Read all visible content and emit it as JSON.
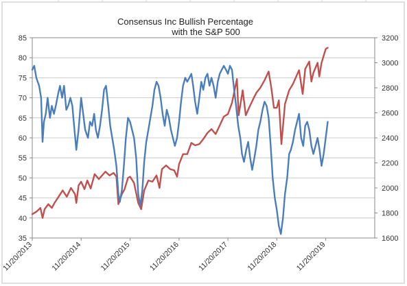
{
  "chart_data": {
    "type": "line",
    "title": "Consensus Inc Bullish Percentage",
    "subtitle": "with the S&P 500",
    "xlabel": "",
    "ylabel_left": "",
    "ylabel_right": "",
    "x_tick_labels": [
      "11/20/2013",
      "11/20/2014",
      "11/20/2015",
      "11/20/2016",
      "11/20/2017",
      "11/20/2018",
      "11/20/2019"
    ],
    "x_range": [
      "11/20/2013",
      "11/20/2020"
    ],
    "ylim_left": [
      35,
      85
    ],
    "ylim_right": [
      1600,
      3200
    ],
    "y_ticks_left": [
      "35",
      "40",
      "45",
      "50",
      "55",
      "60",
      "65",
      "70",
      "75",
      "80",
      "85"
    ],
    "y_ticks_right": [
      "1600",
      "1800",
      "2000",
      "2200",
      "2400",
      "2600",
      "2800",
      "3000",
      "3200"
    ],
    "grid": "horizontal",
    "legend": "none",
    "series": [
      {
        "axis": "left",
        "color": "#4a7ebb",
        "points": [
          [
            "2013-11-20",
            77
          ],
          [
            "2013-12-05",
            78
          ],
          [
            "2013-12-20",
            75
          ],
          [
            "2014-01-10",
            73
          ],
          [
            "2014-01-25",
            70
          ],
          [
            "2014-02-05",
            59
          ],
          [
            "2014-02-15",
            64
          ],
          [
            "2014-03-01",
            66
          ],
          [
            "2014-03-15",
            70
          ],
          [
            "2014-04-01",
            65
          ],
          [
            "2014-04-15",
            68
          ],
          [
            "2014-05-01",
            66
          ],
          [
            "2014-05-15",
            68
          ],
          [
            "2014-06-01",
            71
          ],
          [
            "2014-06-15",
            73
          ],
          [
            "2014-07-01",
            70
          ],
          [
            "2014-07-15",
            73
          ],
          [
            "2014-08-01",
            67
          ],
          [
            "2014-08-15",
            68
          ],
          [
            "2014-09-01",
            70
          ],
          [
            "2014-09-15",
            68
          ],
          [
            "2014-10-01",
            62
          ],
          [
            "2014-10-15",
            57
          ],
          [
            "2014-11-01",
            62
          ],
          [
            "2014-11-20",
            70
          ],
          [
            "2014-12-05",
            66
          ],
          [
            "2014-12-20",
            62
          ],
          [
            "2015-01-10",
            60
          ],
          [
            "2015-01-25",
            64
          ],
          [
            "2015-02-10",
            63
          ],
          [
            "2015-02-25",
            66
          ],
          [
            "2015-03-10",
            62
          ],
          [
            "2015-03-25",
            60
          ],
          [
            "2015-04-10",
            63
          ],
          [
            "2015-04-25",
            67
          ],
          [
            "2015-05-10",
            72
          ],
          [
            "2015-05-25",
            73
          ],
          [
            "2015-06-10",
            68
          ],
          [
            "2015-06-25",
            63
          ],
          [
            "2015-07-10",
            60
          ],
          [
            "2015-07-25",
            57
          ],
          [
            "2015-08-10",
            53
          ],
          [
            "2015-08-25",
            46
          ],
          [
            "2015-09-05",
            44
          ],
          [
            "2015-09-20",
            47
          ],
          [
            "2015-10-05",
            53
          ],
          [
            "2015-10-20",
            60
          ],
          [
            "2015-11-05",
            65
          ],
          [
            "2015-11-20",
            64
          ],
          [
            "2015-12-05",
            62
          ],
          [
            "2015-12-20",
            60
          ],
          [
            "2016-01-05",
            55
          ],
          [
            "2016-01-20",
            46
          ],
          [
            "2016-02-05",
            43
          ],
          [
            "2016-02-20",
            47
          ],
          [
            "2016-03-05",
            54
          ],
          [
            "2016-03-20",
            59
          ],
          [
            "2016-04-05",
            62
          ],
          [
            "2016-04-20",
            65
          ],
          [
            "2016-05-05",
            68
          ],
          [
            "2016-05-20",
            72
          ],
          [
            "2016-06-05",
            74
          ],
          [
            "2016-06-20",
            73
          ],
          [
            "2016-07-05",
            70
          ],
          [
            "2016-07-20",
            66
          ],
          [
            "2016-08-05",
            63
          ],
          [
            "2016-08-20",
            67
          ],
          [
            "2016-09-05",
            65
          ],
          [
            "2016-09-20",
            62
          ],
          [
            "2016-10-05",
            60
          ],
          [
            "2016-10-20",
            58
          ],
          [
            "2016-11-05",
            60
          ],
          [
            "2016-11-20",
            64
          ],
          [
            "2016-12-05",
            69
          ],
          [
            "2016-12-20",
            73
          ],
          [
            "2017-01-05",
            75
          ],
          [
            "2017-01-20",
            74
          ],
          [
            "2017-02-05",
            75
          ],
          [
            "2017-02-20",
            76
          ],
          [
            "2017-03-05",
            73
          ],
          [
            "2017-03-20",
            69
          ],
          [
            "2017-04-05",
            66
          ],
          [
            "2017-04-20",
            70
          ],
          [
            "2017-05-05",
            74
          ],
          [
            "2017-05-20",
            72
          ],
          [
            "2017-06-05",
            75
          ],
          [
            "2017-06-20",
            76
          ],
          [
            "2017-07-05",
            73
          ],
          [
            "2017-07-20",
            75
          ],
          [
            "2017-08-05",
            73
          ],
          [
            "2017-08-20",
            70
          ],
          [
            "2017-09-05",
            74
          ],
          [
            "2017-09-20",
            76
          ],
          [
            "2017-10-05",
            77
          ],
          [
            "2017-10-20",
            78
          ],
          [
            "2017-11-05",
            77
          ],
          [
            "2017-11-20",
            76
          ],
          [
            "2017-12-05",
            78
          ],
          [
            "2017-12-20",
            77
          ],
          [
            "2018-01-05",
            72
          ],
          [
            "2018-01-20",
            68
          ],
          [
            "2018-02-05",
            63
          ],
          [
            "2018-02-20",
            60
          ],
          [
            "2018-03-05",
            56
          ],
          [
            "2018-03-20",
            54
          ],
          [
            "2018-04-05",
            57
          ],
          [
            "2018-04-20",
            59
          ],
          [
            "2018-05-05",
            55
          ],
          [
            "2018-05-20",
            52
          ],
          [
            "2018-06-05",
            55
          ],
          [
            "2018-06-20",
            58
          ],
          [
            "2018-07-05",
            62
          ],
          [
            "2018-07-20",
            64
          ],
          [
            "2018-08-05",
            67
          ],
          [
            "2018-08-20",
            69
          ],
          [
            "2018-09-05",
            68
          ],
          [
            "2018-09-20",
            65
          ],
          [
            "2018-10-05",
            58
          ],
          [
            "2018-10-20",
            50
          ],
          [
            "2018-11-05",
            45
          ],
          [
            "2018-11-20",
            42
          ],
          [
            "2018-12-05",
            38
          ],
          [
            "2018-12-20",
            36
          ],
          [
            "2019-01-05",
            40
          ],
          [
            "2019-01-20",
            46
          ],
          [
            "2019-02-05",
            50
          ],
          [
            "2019-02-20",
            56
          ],
          [
            "2019-03-05",
            57
          ],
          [
            "2019-03-20",
            59
          ],
          [
            "2019-04-05",
            62
          ],
          [
            "2019-04-20",
            64
          ],
          [
            "2019-05-05",
            66
          ],
          [
            "2019-05-20",
            60
          ],
          [
            "2019-06-05",
            58
          ],
          [
            "2019-06-20",
            63
          ],
          [
            "2019-07-05",
            64
          ],
          [
            "2019-07-20",
            62
          ],
          [
            "2019-08-05",
            58
          ],
          [
            "2019-08-20",
            56
          ],
          [
            "2019-09-05",
            58
          ],
          [
            "2019-09-20",
            60
          ],
          [
            "2019-10-05",
            57
          ],
          [
            "2019-10-20",
            53
          ],
          [
            "2019-11-05",
            56
          ],
          [
            "2019-11-20",
            60
          ],
          [
            "2019-12-05",
            64
          ]
        ]
      },
      {
        "axis": "right",
        "color": "#c0504d",
        "points": [
          [
            "2013-11-20",
            1790
          ],
          [
            "2013-12-20",
            1810
          ],
          [
            "2014-01-20",
            1840
          ],
          [
            "2014-02-05",
            1760
          ],
          [
            "2014-02-20",
            1830
          ],
          [
            "2014-03-20",
            1870
          ],
          [
            "2014-04-15",
            1840
          ],
          [
            "2014-05-05",
            1880
          ],
          [
            "2014-06-05",
            1930
          ],
          [
            "2014-07-05",
            1980
          ],
          [
            "2014-08-05",
            1930
          ],
          [
            "2014-09-05",
            2000
          ],
          [
            "2014-10-05",
            1950
          ],
          [
            "2014-10-15",
            1880
          ],
          [
            "2014-11-01",
            2020
          ],
          [
            "2014-11-20",
            2050
          ],
          [
            "2014-12-15",
            1990
          ],
          [
            "2015-01-05",
            2060
          ],
          [
            "2015-01-30",
            1995
          ],
          [
            "2015-03-01",
            2110
          ],
          [
            "2015-04-01",
            2070
          ],
          [
            "2015-05-20",
            2130
          ],
          [
            "2015-06-20",
            2100
          ],
          [
            "2015-07-20",
            2120
          ],
          [
            "2015-08-10",
            2090
          ],
          [
            "2015-08-25",
            1870
          ],
          [
            "2015-09-20",
            1950
          ],
          [
            "2015-10-10",
            1990
          ],
          [
            "2015-11-05",
            2080
          ],
          [
            "2015-11-20",
            2090
          ],
          [
            "2015-12-20",
            2040
          ],
          [
            "2016-01-20",
            1880
          ],
          [
            "2016-02-11",
            1830
          ],
          [
            "2016-03-05",
            1980
          ],
          [
            "2016-04-05",
            2060
          ],
          [
            "2016-05-05",
            2050
          ],
          [
            "2016-06-05",
            2100
          ],
          [
            "2016-06-27",
            2000
          ],
          [
            "2016-07-15",
            2150
          ],
          [
            "2016-08-15",
            2180
          ],
          [
            "2016-09-15",
            2150
          ],
          [
            "2016-10-15",
            2140
          ],
          [
            "2016-11-05",
            2090
          ],
          [
            "2016-11-20",
            2190
          ],
          [
            "2016-12-20",
            2270
          ],
          [
            "2017-01-20",
            2270
          ],
          [
            "2017-02-20",
            2360
          ],
          [
            "2017-03-20",
            2340
          ],
          [
            "2017-04-20",
            2350
          ],
          [
            "2017-05-20",
            2390
          ],
          [
            "2017-06-20",
            2440
          ],
          [
            "2017-07-20",
            2470
          ],
          [
            "2017-08-20",
            2430
          ],
          [
            "2017-09-20",
            2500
          ],
          [
            "2017-10-20",
            2570
          ],
          [
            "2017-11-20",
            2590
          ],
          [
            "2017-12-20",
            2680
          ],
          [
            "2018-01-26",
            2870
          ],
          [
            "2018-02-08",
            2580
          ],
          [
            "2018-03-10",
            2780
          ],
          [
            "2018-04-02",
            2580
          ],
          [
            "2018-05-01",
            2650
          ],
          [
            "2018-06-01",
            2720
          ],
          [
            "2018-06-20",
            2760
          ],
          [
            "2018-07-20",
            2800
          ],
          [
            "2018-08-20",
            2860
          ],
          [
            "2018-09-20",
            2930
          ],
          [
            "2018-10-10",
            2800
          ],
          [
            "2018-10-29",
            2640
          ],
          [
            "2018-11-20",
            2640
          ],
          [
            "2018-12-05",
            2700
          ],
          [
            "2018-12-24",
            2350
          ],
          [
            "2019-01-20",
            2670
          ],
          [
            "2019-02-20",
            2780
          ],
          [
            "2019-03-20",
            2830
          ],
          [
            "2019-04-20",
            2905
          ],
          [
            "2019-05-05",
            2940
          ],
          [
            "2019-06-01",
            2750
          ],
          [
            "2019-06-20",
            2950
          ],
          [
            "2019-07-20",
            3010
          ],
          [
            "2019-08-05",
            2850
          ],
          [
            "2019-08-20",
            2920
          ],
          [
            "2019-09-20",
            3000
          ],
          [
            "2019-10-03",
            2890
          ],
          [
            "2019-10-20",
            3000
          ],
          [
            "2019-11-20",
            3110
          ],
          [
            "2019-12-05",
            3120
          ]
        ]
      }
    ]
  }
}
